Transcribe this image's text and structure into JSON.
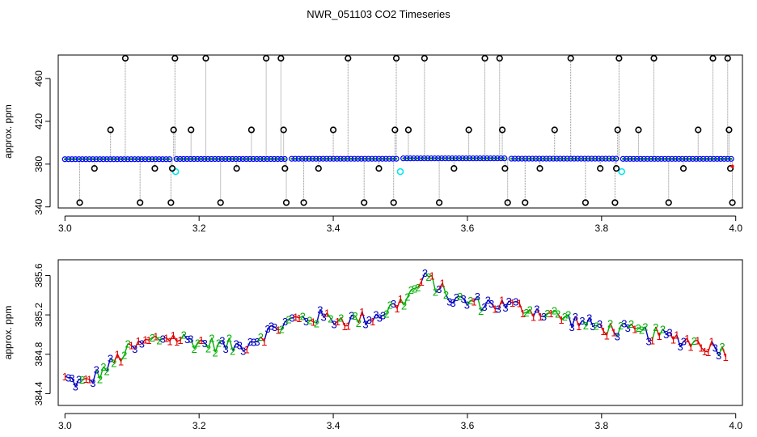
{
  "title": "NWR_051103  CO2 Timeseries",
  "chart_data": [
    {
      "type": "scatter",
      "ylabel": "approx. ppm",
      "xlim": [
        2.99,
        4.01
      ],
      "ylim": [
        339,
        482
      ],
      "x_ticks": [
        3.0,
        3.2,
        3.4,
        3.6,
        3.8,
        4.0
      ],
      "x_tick_labels": [
        "3.0",
        "3.2",
        "3.4",
        "3.6",
        "3.8",
        "4.0"
      ],
      "y_ticks": [
        340,
        380,
        420,
        460
      ],
      "y_tick_labels": [
        "340",
        "380",
        "420",
        "460"
      ],
      "colors": {
        "baseline": "#0000ff",
        "baseline_edge": "#00a000",
        "flagged_low": "#00e5ee",
        "outlier": "#000000",
        "spike": "#888888",
        "endpoint": "#ff0000"
      },
      "baseline_start": 3.0,
      "baseline_end": 3.995,
      "baseline_step": 0.0052,
      "baseline_segments": [
        {
          "x_start": 3.0,
          "x_end": 3.16,
          "y": 384.6
        },
        {
          "x_start": 3.165,
          "x_end": 3.33,
          "y": 384.8
        },
        {
          "x_start": 3.335,
          "x_end": 3.495,
          "y": 385.0
        },
        {
          "x_start": 3.5,
          "x_end": 3.66,
          "y": 385.4
        },
        {
          "x_start": 3.665,
          "x_end": 3.825,
          "y": 385.1
        },
        {
          "x_start": 3.83,
          "x_end": 3.995,
          "y": 384.9
        }
      ],
      "flagged_points": [
        {
          "x": 3.165,
          "y": 373
        },
        {
          "x": 3.5,
          "y": 373
        },
        {
          "x": 3.83,
          "y": 373
        }
      ],
      "outliers": [
        {
          "x": 3.022,
          "y": 344
        },
        {
          "x": 3.044,
          "y": 376
        },
        {
          "x": 3.068,
          "y": 412
        },
        {
          "x": 3.09,
          "y": 479
        },
        {
          "x": 3.112,
          "y": 344
        },
        {
          "x": 3.134,
          "y": 376
        },
        {
          "x": 3.158,
          "y": 344
        },
        {
          "x": 3.16,
          "y": 376
        },
        {
          "x": 3.162,
          "y": 412
        },
        {
          "x": 3.164,
          "y": 479
        },
        {
          "x": 3.188,
          "y": 412
        },
        {
          "x": 3.21,
          "y": 479
        },
        {
          "x": 3.232,
          "y": 344
        },
        {
          "x": 3.256,
          "y": 376
        },
        {
          "x": 3.278,
          "y": 412
        },
        {
          "x": 3.3,
          "y": 479
        },
        {
          "x": 3.322,
          "y": 479
        },
        {
          "x": 3.326,
          "y": 412
        },
        {
          "x": 3.328,
          "y": 376
        },
        {
          "x": 3.33,
          "y": 344
        },
        {
          "x": 3.356,
          "y": 344
        },
        {
          "x": 3.378,
          "y": 376
        },
        {
          "x": 3.4,
          "y": 412
        },
        {
          "x": 3.422,
          "y": 479
        },
        {
          "x": 3.446,
          "y": 344
        },
        {
          "x": 3.468,
          "y": 376
        },
        {
          "x": 3.49,
          "y": 344
        },
        {
          "x": 3.492,
          "y": 412
        },
        {
          "x": 3.494,
          "y": 479
        },
        {
          "x": 3.512,
          "y": 412
        },
        {
          "x": 3.536,
          "y": 479
        },
        {
          "x": 3.558,
          "y": 344
        },
        {
          "x": 3.58,
          "y": 376
        },
        {
          "x": 3.602,
          "y": 412
        },
        {
          "x": 3.626,
          "y": 479
        },
        {
          "x": 3.648,
          "y": 479
        },
        {
          "x": 3.652,
          "y": 412
        },
        {
          "x": 3.656,
          "y": 376
        },
        {
          "x": 3.66,
          "y": 344
        },
        {
          "x": 3.686,
          "y": 344
        },
        {
          "x": 3.708,
          "y": 376
        },
        {
          "x": 3.73,
          "y": 412
        },
        {
          "x": 3.754,
          "y": 479
        },
        {
          "x": 3.776,
          "y": 344
        },
        {
          "x": 3.798,
          "y": 376
        },
        {
          "x": 3.82,
          "y": 344
        },
        {
          "x": 3.822,
          "y": 376
        },
        {
          "x": 3.824,
          "y": 412
        },
        {
          "x": 3.826,
          "y": 479
        },
        {
          "x": 3.855,
          "y": 412
        },
        {
          "x": 3.878,
          "y": 479
        },
        {
          "x": 3.9,
          "y": 344
        },
        {
          "x": 3.922,
          "y": 376
        },
        {
          "x": 3.944,
          "y": 412
        },
        {
          "x": 3.966,
          "y": 479
        },
        {
          "x": 3.988,
          "y": 479
        },
        {
          "x": 3.99,
          "y": 412
        },
        {
          "x": 3.992,
          "y": 376
        },
        {
          "x": 3.995,
          "y": 344
        }
      ],
      "endpoint": {
        "x": 3.995,
        "y": 378
      }
    },
    {
      "type": "line",
      "ylabel": "approx. ppm",
      "xlim": [
        2.99,
        4.01
      ],
      "ylim": [
        384.28,
        385.76
      ],
      "x_ticks": [
        3.0,
        3.2,
        3.4,
        3.6,
        3.8,
        4.0
      ],
      "x_tick_labels": [
        "3.0",
        "3.2",
        "3.4",
        "3.6",
        "3.8",
        "4.0"
      ],
      "y_ticks": [
        384.4,
        384.8,
        385.2,
        385.6
      ],
      "y_tick_labels": [
        "384.4",
        "384.8",
        "385.2",
        "385.6"
      ],
      "series": [
        {
          "label": "1",
          "color": "#e00000"
        },
        {
          "label": "2",
          "color": "#00b000"
        },
        {
          "label": "3",
          "color": "#0000c0"
        }
      ],
      "trend": [
        [
          3.0,
          384.55
        ],
        [
          3.03,
          384.5
        ],
        [
          3.06,
          384.65
        ],
        [
          3.09,
          384.82
        ],
        [
          3.12,
          384.92
        ],
        [
          3.15,
          384.98
        ],
        [
          3.18,
          384.95
        ],
        [
          3.22,
          384.9
        ],
        [
          3.26,
          384.88
        ],
        [
          3.3,
          385.02
        ],
        [
          3.34,
          385.15
        ],
        [
          3.38,
          385.18
        ],
        [
          3.42,
          385.15
        ],
        [
          3.46,
          385.18
        ],
        [
          3.5,
          385.32
        ],
        [
          3.54,
          385.58
        ],
        [
          3.58,
          385.35
        ],
        [
          3.62,
          385.32
        ],
        [
          3.66,
          385.3
        ],
        [
          3.7,
          385.25
        ],
        [
          3.74,
          385.18
        ],
        [
          3.78,
          385.1
        ],
        [
          3.82,
          385.05
        ],
        [
          3.86,
          385.02
        ],
        [
          3.9,
          384.98
        ],
        [
          3.94,
          384.92
        ],
        [
          3.98,
          384.85
        ]
      ],
      "x_start": 3.0,
      "x_end": 3.985,
      "n_points": 190
    }
  ]
}
